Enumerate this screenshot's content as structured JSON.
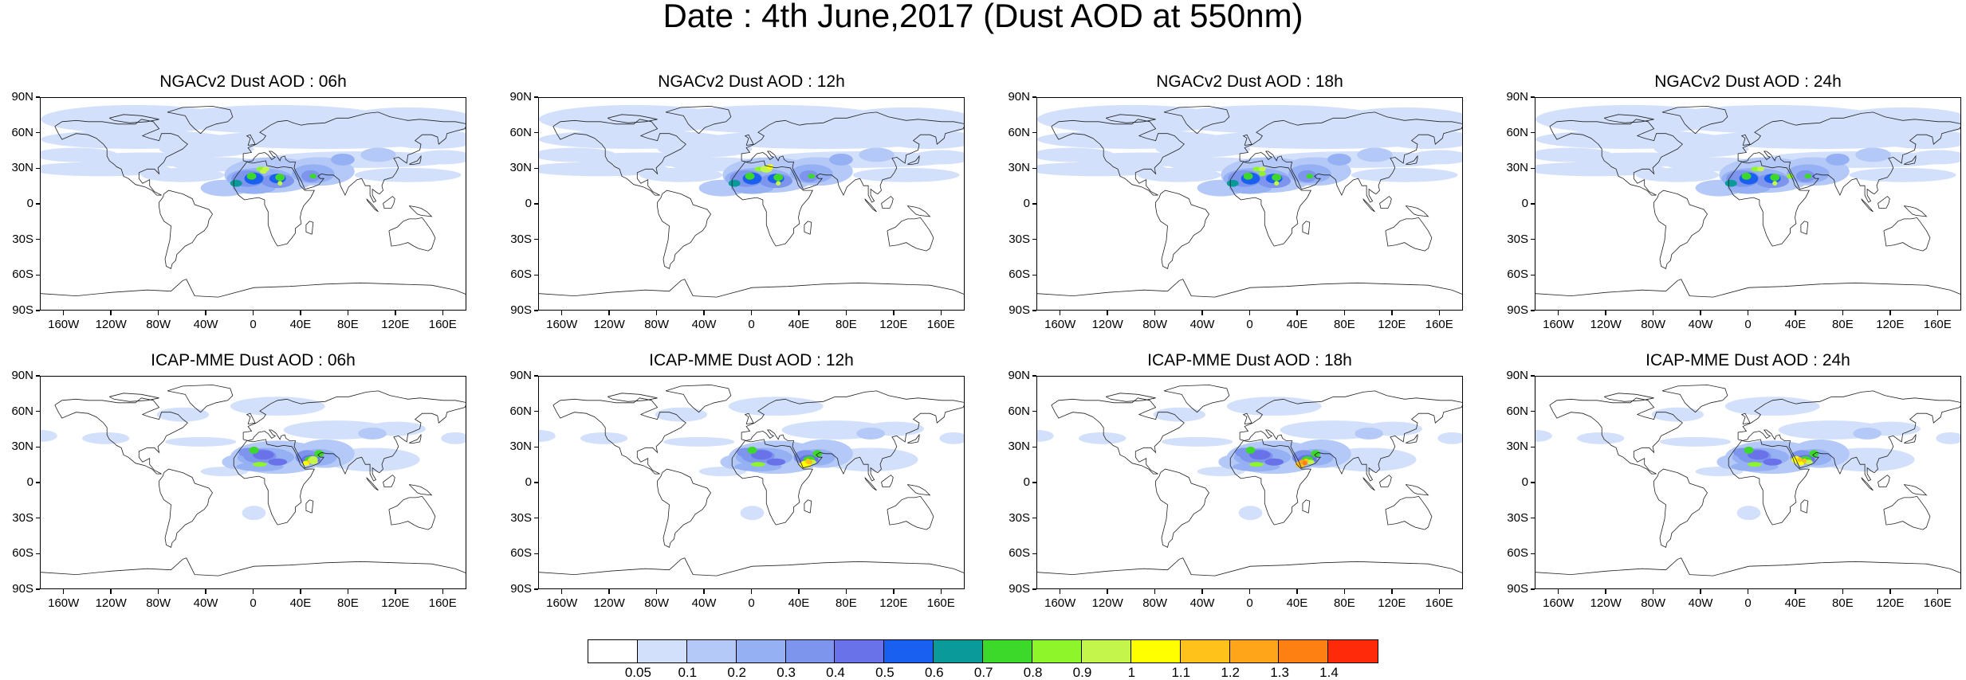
{
  "title": "Date : 4th June,2017 (Dust AOD at 550nm)",
  "lat_labels": [
    "90N",
    "60N",
    "30N",
    "0",
    "30S",
    "60S",
    "90S"
  ],
  "lon_labels": [
    "160W",
    "120W",
    "80W",
    "40W",
    "0",
    "40E",
    "80E",
    "120E",
    "160E"
  ],
  "panels": [
    {
      "title": "NGACv2 Dust AOD : 06h",
      "model": "NGACv2",
      "hour": "06h"
    },
    {
      "title": "NGACv2 Dust AOD : 12h",
      "model": "NGACv2",
      "hour": "12h"
    },
    {
      "title": "NGACv2 Dust AOD : 18h",
      "model": "NGACv2",
      "hour": "18h"
    },
    {
      "title": "NGACv2 Dust AOD : 24h",
      "model": "NGACv2",
      "hour": "24h"
    },
    {
      "title": "ICAP-MME Dust AOD : 06h",
      "model": "ICAP-MME",
      "hour": "06h"
    },
    {
      "title": "ICAP-MME Dust AOD : 12h",
      "model": "ICAP-MME",
      "hour": "12h"
    },
    {
      "title": "ICAP-MME Dust AOD : 18h",
      "model": "ICAP-MME",
      "hour": "18h"
    },
    {
      "title": "ICAP-MME Dust AOD : 24h",
      "model": "ICAP-MME",
      "hour": "24h"
    }
  ],
  "colorbar": {
    "labels": [
      "0.05",
      "0.1",
      "0.2",
      "0.3",
      "0.4",
      "0.5",
      "0.6",
      "0.7",
      "0.8",
      "0.9",
      "1",
      "1.1",
      "1.2",
      "1.3",
      "1.4"
    ],
    "colors": [
      "#ffffff",
      "#d2e0fb",
      "#b4c9f7",
      "#96b0f4",
      "#7e95ee",
      "#6a72ea",
      "#1a60f0",
      "#0a9a9a",
      "#3cd82a",
      "#8ef52a",
      "#c4f54a",
      "#ffff00",
      "#ffc21a",
      "#ffa51a",
      "#ff8012",
      "#ff2a0a"
    ]
  }
}
